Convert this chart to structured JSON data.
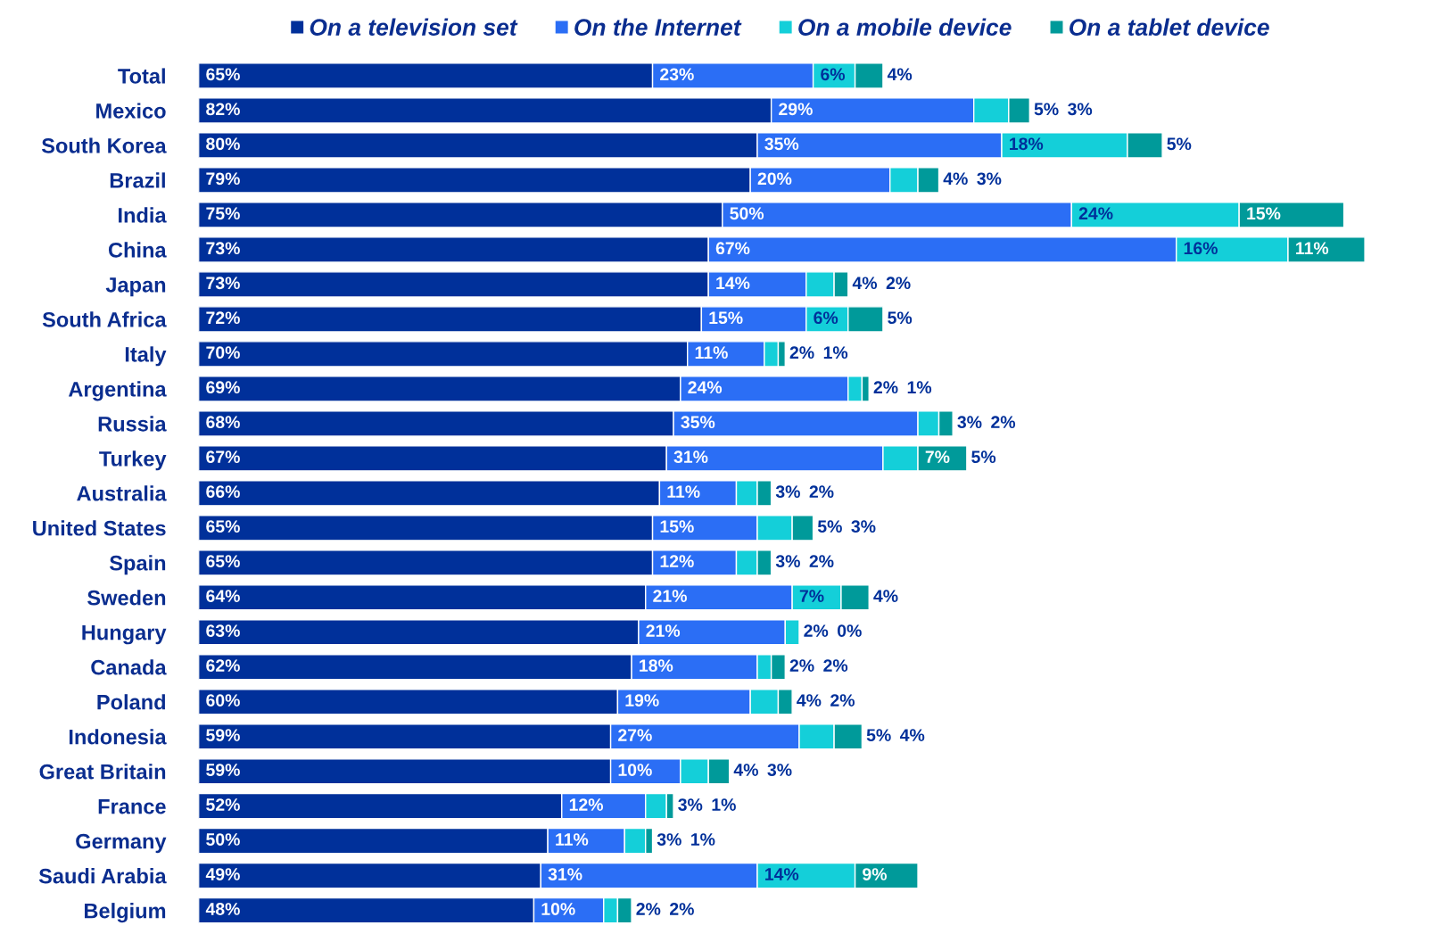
{
  "chart_data": {
    "type": "bar",
    "orientation": "horizontal",
    "stacked": true,
    "legend": "top",
    "marker": "square",
    "categories": [
      "Total",
      "Mexico",
      "South Korea",
      "Brazil",
      "India",
      "China",
      "Japan",
      "South Africa",
      "Italy",
      "Argentina",
      "Russia",
      "Turkey",
      "Australia",
      "United States",
      "Spain",
      "Sweden",
      "Hungary",
      "Canada",
      "Poland",
      "Indonesia",
      "Great Britain",
      "France",
      "Germany",
      "Saudi Arabia",
      "Belgium"
    ],
    "series": [
      {
        "name": "On a television set",
        "color": "#00309a",
        "values": [
          65,
          82,
          80,
          79,
          75,
          73,
          73,
          72,
          70,
          69,
          68,
          67,
          66,
          65,
          65,
          64,
          63,
          62,
          60,
          59,
          59,
          52,
          50,
          49,
          48
        ],
        "value_labels": [
          "65%",
          "82%",
          "80%",
          "79%",
          "75%",
          "73%",
          "73%",
          "72%",
          "70%",
          "69%",
          "68%",
          "67%",
          "66%",
          "65%",
          "65%",
          "64%",
          "63%",
          "62%",
          "60%",
          "59%",
          "59%",
          "52%",
          "50%",
          "49%",
          "48%"
        ]
      },
      {
        "name": "On the Internet",
        "color": "#2b6ef5",
        "values": [
          23,
          29,
          35,
          20,
          50,
          67,
          14,
          15,
          11,
          24,
          35,
          31,
          11,
          15,
          12,
          21,
          21,
          18,
          19,
          27,
          10,
          12,
          11,
          31,
          10
        ],
        "value_labels": [
          "23%",
          "29%",
          "35%",
          "20%",
          "50%",
          "67%",
          "14%",
          "15%",
          "11%",
          "24%",
          "35%",
          "31%",
          "11%",
          "15%",
          "12%",
          "21%",
          "21%",
          "18%",
          "19%",
          "27%",
          "10%",
          "12%",
          "11%",
          "31%",
          "10%"
        ]
      },
      {
        "name": "On a mobile device",
        "color": "#14cfd9",
        "values": [
          6,
          5,
          18,
          4,
          24,
          16,
          4,
          6,
          2,
          2,
          3,
          5,
          3,
          5,
          3,
          7,
          2,
          2,
          4,
          5,
          4,
          3,
          3,
          14,
          2
        ],
        "value_labels": [
          "6%",
          "5%",
          "18%",
          "4%",
          "24%",
          "16%",
          "4%",
          "6%",
          "2%",
          "2%",
          "3%",
          "5%",
          "3%",
          "5%",
          "3%",
          "7%",
          "2%",
          "2%",
          "4%",
          "5%",
          "4%",
          "3%",
          "3%",
          "14%",
          "2%"
        ]
      },
      {
        "name": "On a tablet device",
        "color": "#009a9a",
        "values": [
          4,
          3,
          5,
          3,
          15,
          11,
          2,
          5,
          1,
          1,
          2,
          7,
          2,
          3,
          2,
          4,
          0,
          2,
          2,
          4,
          3,
          1,
          1,
          9,
          2
        ],
        "value_labels": [
          "4%",
          "3%",
          "5%",
          "3%",
          "15%",
          "11%",
          "2%",
          "5%",
          "1%",
          "1%",
          "2%",
          "7%",
          "2%",
          "3%",
          "2%",
          "4%",
          "0%",
          "2%",
          "2%",
          "4%",
          "3%",
          "1%",
          "1%",
          "9%",
          "2%"
        ]
      }
    ]
  }
}
